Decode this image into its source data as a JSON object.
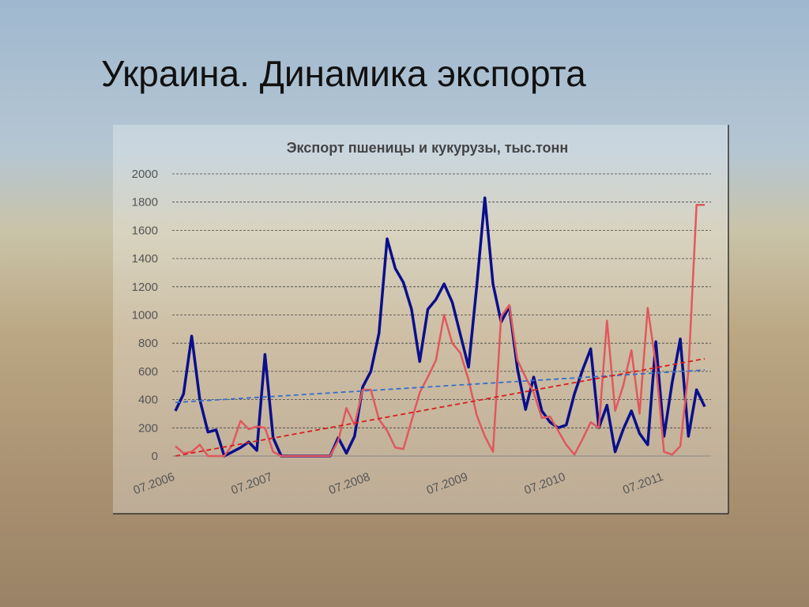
{
  "heading": "Украина. Динамика экспорта",
  "chart_data": {
    "type": "line",
    "title": "Экспорт пшеницы и кукурузы, тыс.тонн",
    "categories": [
      "07.2006",
      null,
      null,
      null,
      null,
      null,
      null,
      null,
      null,
      null,
      null,
      null,
      "07.2007",
      null,
      null,
      null,
      null,
      null,
      null,
      null,
      null,
      null,
      null,
      null,
      "07.2008",
      null,
      null,
      null,
      null,
      null,
      null,
      null,
      null,
      null,
      null,
      null,
      "07.2009",
      null,
      null,
      null,
      null,
      null,
      null,
      null,
      null,
      null,
      null,
      null,
      "07.2010",
      null,
      null,
      null,
      null,
      null,
      null,
      null,
      null,
      null,
      null,
      null,
      "07.2011",
      null,
      null,
      null,
      null,
      null
    ],
    "series": [
      {
        "color": "#0a0f8c",
        "width": 3.5,
        "values": [
          320,
          440,
          850,
          400,
          170,
          185,
          0,
          30,
          60,
          100,
          40,
          720,
          130,
          0,
          0,
          0,
          0,
          0,
          0,
          0,
          130,
          20,
          140,
          490,
          600,
          870,
          1540,
          1330,
          1230,
          1040,
          670,
          1040,
          1110,
          1220,
          1090,
          860,
          630,
          1200,
          1830,
          1220,
          950,
          1060,
          620,
          330,
          560,
          320,
          240,
          200,
          220,
          440,
          610,
          760,
          200,
          360,
          30,
          190,
          320,
          160,
          80,
          810,
          140,
          520,
          830,
          140,
          470,
          350
        ]
      },
      {
        "color": "#e0585e",
        "width": 2.5,
        "values": [
          70,
          20,
          30,
          80,
          0,
          0,
          0,
          80,
          250,
          190,
          210,
          200,
          30,
          0,
          0,
          0,
          0,
          0,
          0,
          0,
          110,
          340,
          220,
          470,
          470,
          260,
          180,
          60,
          50,
          250,
          450,
          560,
          680,
          1000,
          800,
          730,
          540,
          290,
          140,
          30,
          990,
          1070,
          680,
          560,
          450,
          270,
          280,
          180,
          80,
          10,
          120,
          240,
          200,
          960,
          320,
          500,
          750,
          300,
          1050,
          650,
          30,
          10,
          70,
          600,
          1780,
          1780
        ]
      }
    ],
    "trendlines": [
      {
        "color": "#3a6fc8",
        "start": 380,
        "end": 610
      },
      {
        "color": "#d81e1e",
        "start": 0,
        "end": 690
      }
    ],
    "ylim": [
      0,
      2000
    ],
    "yticks": [
      0,
      200,
      400,
      600,
      800,
      1000,
      1200,
      1400,
      1600,
      1800,
      2000
    ],
    "grid": true
  }
}
